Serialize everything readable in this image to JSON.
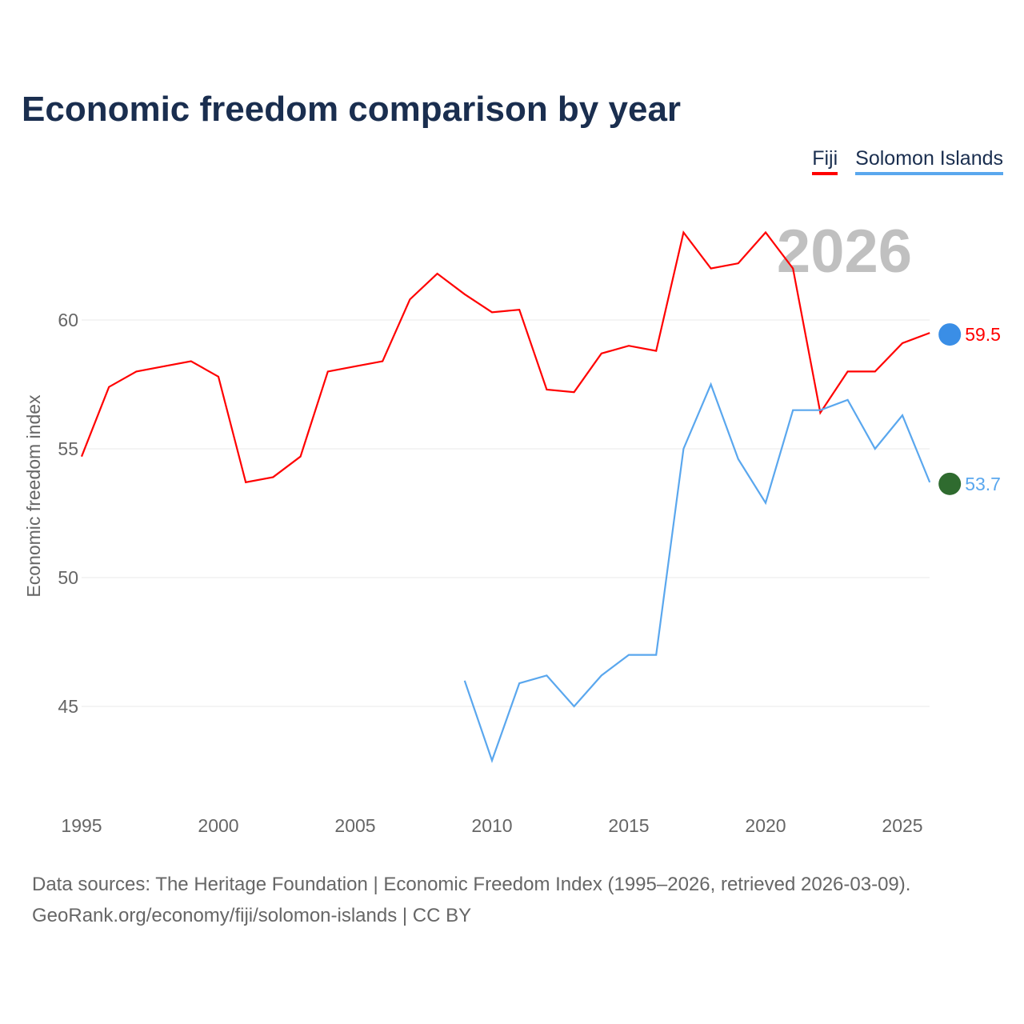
{
  "title": "Economic freedom comparison by year",
  "footer": {
    "line1": "Data sources: The Heritage Foundation | Economic Freedom Index (1995–2026, retrieved 2026-03-09).",
    "line2": "GeoRank.org/economy/fiji/solomon-islands | CC BY"
  },
  "chart_data": {
    "type": "line",
    "title": "Economic freedom comparison by year",
    "ylabel": "Economic freedom index",
    "xlabel": "",
    "year_watermark": "2026",
    "xlim": [
      1995,
      2026
    ],
    "ylim": [
      41,
      65
    ],
    "xticks": [
      "1995",
      "2000",
      "2005",
      "2010",
      "2015",
      "2020",
      "2025"
    ],
    "yticks": [
      "45",
      "50",
      "55",
      "60"
    ],
    "grid": true,
    "legend_position": "top-right",
    "series": [
      {
        "name": "Fiji",
        "color": "#ff0000",
        "end_label": "59.5",
        "x": [
          1995,
          1996,
          1997,
          1998,
          1999,
          2000,
          2001,
          2002,
          2003,
          2004,
          2005,
          2006,
          2007,
          2008,
          2009,
          2010,
          2011,
          2012,
          2013,
          2014,
          2015,
          2016,
          2017,
          2018,
          2019,
          2020,
          2021,
          2022,
          2023,
          2024,
          2025,
          2026
        ],
        "values": [
          54.7,
          57.4,
          58.0,
          58.2,
          58.4,
          57.8,
          53.7,
          53.9,
          54.7,
          58.0,
          58.2,
          58.4,
          60.8,
          61.8,
          61.0,
          60.3,
          60.4,
          57.3,
          57.2,
          58.7,
          59.0,
          58.8,
          63.4,
          62.0,
          62.2,
          63.4,
          62.0,
          56.4,
          58.0,
          58.0,
          59.1,
          59.5
        ]
      },
      {
        "name": "Solomon Islands",
        "color": "#5aa7ee",
        "end_label": "53.7",
        "x": [
          2009,
          2010,
          2011,
          2012,
          2013,
          2014,
          2015,
          2016,
          2017,
          2018,
          2019,
          2020,
          2021,
          2022,
          2023,
          2024,
          2025,
          2026
        ],
        "values": [
          46.0,
          42.9,
          45.9,
          46.2,
          45.0,
          46.2,
          47.0,
          47.0,
          55.0,
          57.5,
          54.6,
          52.9,
          56.5,
          56.5,
          56.9,
          55.0,
          56.3,
          53.7
        ]
      }
    ]
  }
}
